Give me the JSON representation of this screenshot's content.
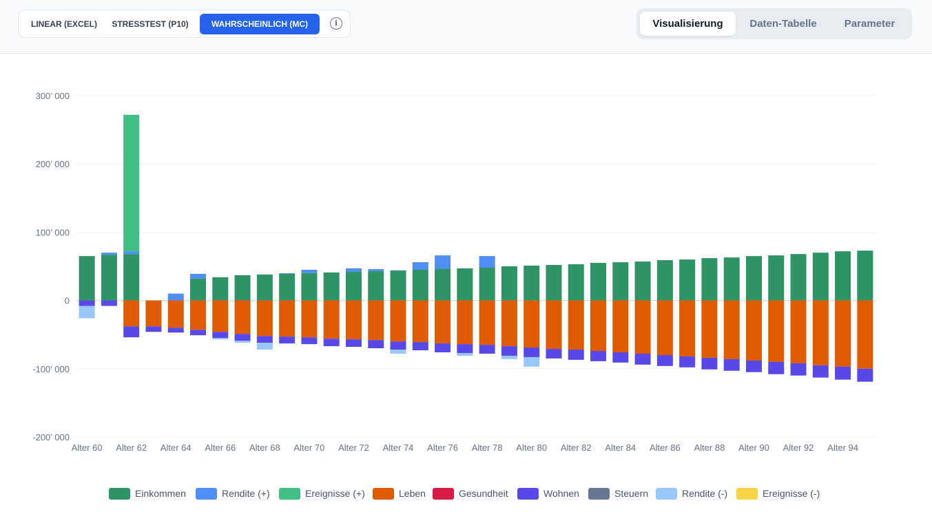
{
  "scenarios": {
    "items": [
      {
        "label": "LINEAR (EXCEL)",
        "active": false
      },
      {
        "label": "STRESSTEST (P10)",
        "active": false
      },
      {
        "label": "WAHRSCHEINLICH (MC)",
        "active": true
      }
    ],
    "info_icon": "info-icon",
    "info_glyph": "i"
  },
  "view_tabs": [
    {
      "label": "Visualisierung",
      "active": true
    },
    {
      "label": "Daten-Tabelle",
      "active": false
    },
    {
      "label": "Parameter",
      "active": false
    }
  ],
  "chart_data": {
    "type": "bar",
    "stacked": true,
    "title": "",
    "xlabel": "",
    "ylabel": "",
    "ylim": [
      -200000,
      300000
    ],
    "yticks": [
      -200000,
      -100000,
      0,
      100000,
      200000,
      300000
    ],
    "ytick_labels": [
      "-200’ 000",
      "-100’ 000",
      "0",
      "100’ 000",
      "200’ 000",
      "300’ 000"
    ],
    "grid": true,
    "legend_position": "bottom",
    "categories": [
      "Alter 60",
      "Alter 61",
      "Alter 62",
      "Alter 63",
      "Alter 64",
      "Alter 65",
      "Alter 66",
      "Alter 67",
      "Alter 68",
      "Alter 69",
      "Alter 70",
      "Alter 71",
      "Alter 72",
      "Alter 73",
      "Alter 74",
      "Alter 75",
      "Alter 76",
      "Alter 77",
      "Alter 78",
      "Alter 79",
      "Alter 80",
      "Alter 81",
      "Alter 82",
      "Alter 83",
      "Alter 84",
      "Alter 85",
      "Alter 86",
      "Alter 87",
      "Alter 88",
      "Alter 89",
      "Alter 90",
      "Alter 91",
      "Alter 92",
      "Alter 93",
      "Alter 94",
      "Alter 95"
    ],
    "xtick_labels": [
      "Alter 60",
      "Alter 62",
      "Alter 64",
      "Alter 66",
      "Alter 68",
      "Alter 70",
      "Alter 72",
      "Alter 74",
      "Alter 76",
      "Alter 78",
      "Alter 80",
      "Alter 82",
      "Alter 84",
      "Alter 86",
      "Alter 88",
      "Alter 90",
      "Alter 92",
      "Alter 94"
    ],
    "series": [
      {
        "name": "Einkommen",
        "color": "#2e9466",
        "values": [
          65000,
          67000,
          68000,
          0,
          0,
          32000,
          34000,
          37000,
          38000,
          39000,
          40000,
          41000,
          42000,
          43000,
          44000,
          45000,
          46000,
          47000,
          48000,
          50000,
          51000,
          52000,
          53000,
          55000,
          56000,
          57000,
          59000,
          60000,
          62000,
          63000,
          65000,
          66000,
          68000,
          70000,
          72000,
          73000
        ]
      },
      {
        "name": "Rendite (+)",
        "color": "#4f8ef7",
        "values": [
          0,
          3000,
          4000,
          0,
          10000,
          7000,
          0,
          0,
          0,
          1000,
          5000,
          0,
          5000,
          3000,
          0,
          11000,
          20000,
          0,
          17000,
          0,
          0,
          0,
          0,
          0,
          0,
          0,
          0,
          0,
          0,
          0,
          0,
          0,
          0,
          0,
          0,
          0
        ]
      },
      {
        "name": "Ereignisse (+)",
        "color": "#3fbf83",
        "values": [
          0,
          0,
          200000,
          0,
          0,
          0,
          0,
          0,
          0,
          0,
          0,
          0,
          0,
          0,
          0,
          0,
          0,
          0,
          0,
          0,
          0,
          0,
          0,
          0,
          0,
          0,
          0,
          0,
          0,
          0,
          0,
          0,
          0,
          0,
          0,
          0
        ]
      },
      {
        "name": "Leben",
        "color": "#e05a00",
        "values": [
          0,
          0,
          -38000,
          -38000,
          -40000,
          -43000,
          -46000,
          -49000,
          -52000,
          -53000,
          -54000,
          -56000,
          -57000,
          -58000,
          -60000,
          -61000,
          -63000,
          -64000,
          -65000,
          -67000,
          -69000,
          -71000,
          -72000,
          -74000,
          -76000,
          -78000,
          -80000,
          -82000,
          -84000,
          -86000,
          -88000,
          -90000,
          -92000,
          -95000,
          -97000,
          -100000
        ]
      },
      {
        "name": "Gesundheit",
        "color": "#d91a45",
        "values": [
          0,
          0,
          0,
          0,
          0,
          0,
          0,
          0,
          0,
          0,
          0,
          0,
          0,
          0,
          0,
          0,
          0,
          0,
          0,
          0,
          0,
          0,
          0,
          0,
          0,
          0,
          0,
          0,
          0,
          0,
          0,
          0,
          0,
          0,
          0,
          0
        ]
      },
      {
        "name": "Wohnen",
        "color": "#5848e8",
        "values": [
          -8000,
          -8000,
          -16000,
          -8000,
          -7000,
          -8000,
          -9000,
          -10000,
          -10000,
          -10000,
          -10000,
          -11000,
          -11000,
          -12000,
          -12000,
          -12000,
          -13000,
          -13000,
          -13000,
          -14000,
          -14000,
          -14000,
          -15000,
          -15000,
          -15000,
          -16000,
          -16000,
          -16000,
          -17000,
          -17000,
          -17000,
          -18000,
          -18000,
          -18000,
          -19000,
          -19000
        ]
      },
      {
        "name": "Steuern",
        "color": "#677691",
        "values": [
          0,
          0,
          0,
          0,
          0,
          0,
          0,
          0,
          0,
          0,
          0,
          0,
          0,
          0,
          0,
          0,
          0,
          0,
          0,
          0,
          0,
          0,
          0,
          0,
          0,
          0,
          0,
          0,
          0,
          0,
          0,
          0,
          0,
          0,
          0,
          0
        ]
      },
      {
        "name": "Rendite (-)",
        "color": "#98c8fb",
        "values": [
          -18000,
          0,
          0,
          0,
          0,
          0,
          -2000,
          -3000,
          -10000,
          0,
          0,
          0,
          0,
          0,
          -6000,
          0,
          0,
          -4000,
          0,
          -5000,
          -14000,
          0,
          0,
          0,
          0,
          0,
          0,
          0,
          0,
          0,
          0,
          0,
          0,
          0,
          0,
          0
        ]
      },
      {
        "name": "Ereignisse (-)",
        "color": "#f7d445",
        "values": [
          0,
          0,
          0,
          0,
          0,
          0,
          0,
          0,
          0,
          0,
          0,
          0,
          0,
          0,
          0,
          0,
          0,
          0,
          0,
          0,
          0,
          0,
          0,
          0,
          0,
          0,
          0,
          0,
          0,
          0,
          0,
          0,
          0,
          0,
          0,
          0
        ]
      }
    ]
  }
}
